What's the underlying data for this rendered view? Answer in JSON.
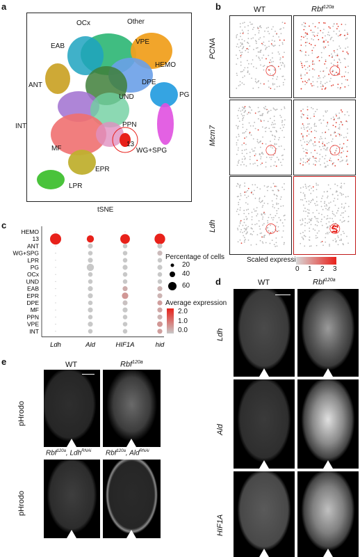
{
  "panel_a": {
    "label": "a",
    "xlabel": "tSNE",
    "clusters": [
      "OCx",
      "Other",
      "EAB",
      "VPE",
      "HEMO",
      "ANT",
      "DPE",
      "UND",
      "PG",
      "INT",
      "PPN",
      "MF",
      "13",
      "WG+SPG",
      "EPR",
      "LPR"
    ]
  },
  "panel_b": {
    "label": "b",
    "col_headers": [
      "WT",
      "Rbf",
      "120a"
    ],
    "row_labels": [
      "PCNA",
      "Mcm7",
      "Ldh"
    ],
    "legend_title": "Scaled expression",
    "legend_ticks": [
      "0",
      "1",
      "2",
      "3"
    ]
  },
  "panel_c": {
    "label": "c",
    "legend_size_title": "Percentage of cells",
    "legend_size_ticks": [
      "20",
      "40",
      "60"
    ],
    "legend_color_title": "Average expression",
    "legend_color_ticks": [
      "2.0",
      "1.0",
      "0.0"
    ]
  },
  "panel_d": {
    "label": "d",
    "col_wt": "WT",
    "col_rbf": "Rbf",
    "col_rbf_sup": "120a",
    "rows": [
      "Ldh",
      "Ald",
      "HIF1A"
    ]
  },
  "panel_e": {
    "label": "e",
    "col_wt": "WT",
    "col_rbf": "Rbf",
    "col_rbf_sup": "120a",
    "row_label": "pHrodo",
    "bottom_left_a": "Rbf",
    "bottom_left_sup_a": "120a",
    "bottom_left_b": ", Ldh",
    "bottom_left_sup_b": "RNAi",
    "bottom_right_a": "Rbf",
    "bottom_right_sup_a": "120a",
    "bottom_right_b": ", Ald",
    "bottom_right_sup_b": "RNAi"
  },
  "chart_data": {
    "type": "scatter",
    "title": "",
    "genes": [
      "Ldh",
      "Ald",
      "HIF1A",
      "hid"
    ],
    "clusters": [
      "HEMO",
      "13",
      "ANT",
      "WG+SPG",
      "LPR",
      "PG",
      "OCx",
      "UND",
      "EAB",
      "EPR",
      "DPE",
      "MF",
      "PPN",
      "VPE",
      "INT"
    ],
    "percent": [
      [
        0,
        0,
        0,
        0
      ],
      [
        60,
        25,
        45,
        55
      ],
      [
        0,
        12,
        10,
        12
      ],
      [
        0,
        10,
        10,
        12
      ],
      [
        0,
        12,
        10,
        10
      ],
      [
        0,
        25,
        12,
        12
      ],
      [
        0,
        10,
        10,
        10
      ],
      [
        0,
        10,
        10,
        10
      ],
      [
        0,
        12,
        12,
        12
      ],
      [
        0,
        12,
        20,
        12
      ],
      [
        0,
        10,
        12,
        12
      ],
      [
        0,
        12,
        12,
        12
      ],
      [
        0,
        10,
        10,
        12
      ],
      [
        0,
        12,
        10,
        15
      ],
      [
        0,
        10,
        10,
        12
      ]
    ],
    "expression": [
      [
        0,
        0,
        0,
        0
      ],
      [
        2.4,
        2.4,
        2.4,
        2.4
      ],
      [
        0,
        0,
        0,
        0
      ],
      [
        0,
        0,
        0,
        0.2
      ],
      [
        0,
        0,
        0,
        0
      ],
      [
        0,
        0,
        0,
        0
      ],
      [
        0,
        0,
        0,
        0
      ],
      [
        0,
        0,
        0,
        0
      ],
      [
        0,
        0,
        0.4,
        0.3
      ],
      [
        0,
        0,
        0.7,
        0.3
      ],
      [
        0,
        0,
        0.1,
        0.6
      ],
      [
        0,
        0,
        0,
        0.5
      ],
      [
        0,
        0,
        0,
        0.3
      ],
      [
        0,
        0,
        0,
        0.7
      ],
      [
        0,
        0,
        0,
        0.6
      ]
    ],
    "size_legend": [
      20,
      40,
      60
    ],
    "color_range": [
      0,
      2.4
    ],
    "colors": {
      "low": "#c8c8c8",
      "high": "#e8211a"
    }
  }
}
